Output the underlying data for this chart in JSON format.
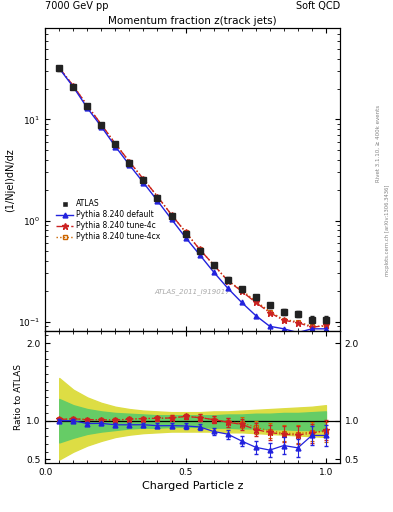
{
  "title_top_left": "7000 GeV pp",
  "title_top_right": "Soft QCD",
  "plot_title": "Momentum fraction z(track jets)",
  "ylabel_main": "(1/Njel)dN/dz",
  "ylabel_ratio": "Ratio to ATLAS",
  "xlabel": "Charged Particle z",
  "right_label_top": "Rivet 3.1.10, ≥ 400k events",
  "right_label_bot": "mcplots.cern.ch [arXiv:1306.3436]",
  "watermark": "ATLAS_2011_I919017",
  "z_values": [
    0.05,
    0.1,
    0.15,
    0.2,
    0.25,
    0.3,
    0.35,
    0.4,
    0.45,
    0.5,
    0.55,
    0.6,
    0.65,
    0.7,
    0.75,
    0.8,
    0.85,
    0.9,
    0.95,
    1.0
  ],
  "atlas_y": [
    32,
    21,
    13.5,
    8.8,
    5.7,
    3.75,
    2.5,
    1.68,
    1.1,
    0.73,
    0.5,
    0.36,
    0.26,
    0.21,
    0.175,
    0.145,
    0.125,
    0.12,
    0.105,
    0.105
  ],
  "atlas_yerr": [
    1.5,
    0.9,
    0.6,
    0.38,
    0.25,
    0.16,
    0.1,
    0.07,
    0.05,
    0.033,
    0.025,
    0.018,
    0.014,
    0.012,
    0.01,
    0.009,
    0.009,
    0.009,
    0.008,
    0.008
  ],
  "default_y": [
    32,
    21,
    13.0,
    8.5,
    5.4,
    3.55,
    2.37,
    1.57,
    1.03,
    0.68,
    0.46,
    0.31,
    0.215,
    0.155,
    0.115,
    0.09,
    0.085,
    0.078,
    0.085,
    0.085
  ],
  "tune4c_y": [
    32.5,
    21.5,
    13.7,
    8.9,
    5.75,
    3.82,
    2.57,
    1.73,
    1.14,
    0.77,
    0.52,
    0.365,
    0.255,
    0.2,
    0.155,
    0.123,
    0.103,
    0.098,
    0.088,
    0.092
  ],
  "tune4cx_y": [
    32.5,
    21.5,
    13.7,
    8.9,
    5.75,
    3.82,
    2.57,
    1.73,
    1.14,
    0.77,
    0.52,
    0.365,
    0.255,
    0.205,
    0.16,
    0.126,
    0.105,
    0.1,
    0.09,
    0.09
  ],
  "ratio_default": [
    1.0,
    1.0,
    0.963,
    0.966,
    0.947,
    0.947,
    0.948,
    0.935,
    0.936,
    0.932,
    0.92,
    0.861,
    0.827,
    0.738,
    0.657,
    0.621,
    0.68,
    0.65,
    0.81,
    0.81
  ],
  "ratio_tune4c": [
    1.016,
    1.024,
    1.015,
    1.011,
    1.009,
    1.019,
    1.028,
    1.03,
    1.036,
    1.055,
    1.04,
    1.014,
    0.981,
    0.952,
    0.886,
    0.848,
    0.824,
    0.817,
    0.838,
    0.876
  ],
  "ratio_tune4cx": [
    1.016,
    1.024,
    1.015,
    1.011,
    1.009,
    1.019,
    1.028,
    1.03,
    1.036,
    1.055,
    1.04,
    1.014,
    0.981,
    0.976,
    0.914,
    0.869,
    0.84,
    0.833,
    0.857,
    0.857
  ],
  "ratio_default_err": [
    0.02,
    0.018,
    0.02,
    0.022,
    0.023,
    0.024,
    0.026,
    0.03,
    0.033,
    0.037,
    0.042,
    0.048,
    0.057,
    0.068,
    0.08,
    0.095,
    0.105,
    0.115,
    0.12,
    0.13
  ],
  "ratio_tune4c_err": [
    0.02,
    0.018,
    0.02,
    0.022,
    0.023,
    0.024,
    0.026,
    0.03,
    0.033,
    0.037,
    0.042,
    0.048,
    0.057,
    0.068,
    0.08,
    0.095,
    0.105,
    0.115,
    0.12,
    0.13
  ],
  "ratio_tune4cx_err": [
    0.02,
    0.018,
    0.02,
    0.022,
    0.023,
    0.024,
    0.026,
    0.03,
    0.033,
    0.037,
    0.042,
    0.048,
    0.057,
    0.068,
    0.08,
    0.095,
    0.105,
    0.115,
    0.12,
    0.13
  ],
  "band_inner_color": "#66cc66",
  "band_outer_color": "#dddd44",
  "color_atlas": "#222222",
  "color_default": "#2222dd",
  "color_tune4c": "#cc2222",
  "color_tune4cx": "#cc6600",
  "ylim_main": [
    0.08,
    80
  ],
  "ylim_ratio": [
    0.45,
    2.15
  ],
  "xlim": [
    0.0,
    1.05
  ],
  "band_z": [
    0.05,
    0.1,
    0.15,
    0.2,
    0.25,
    0.3,
    0.35,
    0.4,
    0.45,
    0.5,
    0.55,
    0.6,
    0.65,
    0.7,
    0.75,
    0.8,
    0.85,
    0.9,
    0.95,
    1.0
  ],
  "band_outer_hi": [
    1.55,
    1.4,
    1.3,
    1.23,
    1.18,
    1.15,
    1.13,
    1.12,
    1.11,
    1.11,
    1.11,
    1.12,
    1.12,
    1.13,
    1.14,
    1.15,
    1.16,
    1.17,
    1.18,
    1.2
  ],
  "band_outer_lo": [
    0.5,
    0.6,
    0.68,
    0.74,
    0.79,
    0.82,
    0.84,
    0.85,
    0.86,
    0.86,
    0.86,
    0.86,
    0.85,
    0.85,
    0.84,
    0.83,
    0.82,
    0.81,
    0.8,
    0.79
  ],
  "band_inner_hi": [
    1.28,
    1.2,
    1.15,
    1.12,
    1.1,
    1.09,
    1.08,
    1.07,
    1.07,
    1.07,
    1.07,
    1.07,
    1.08,
    1.08,
    1.09,
    1.09,
    1.1,
    1.1,
    1.11,
    1.12
  ],
  "band_inner_lo": [
    0.72,
    0.78,
    0.83,
    0.86,
    0.88,
    0.9,
    0.91,
    0.91,
    0.92,
    0.92,
    0.92,
    0.91,
    0.91,
    0.9,
    0.9,
    0.89,
    0.89,
    0.88,
    0.88,
    0.87
  ]
}
